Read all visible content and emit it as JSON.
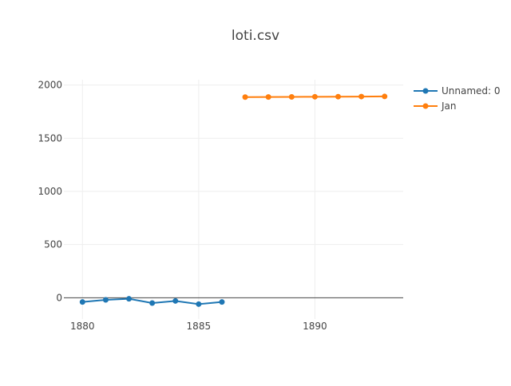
{
  "chart_data": {
    "type": "line",
    "title": "loti.csv",
    "xlabel": "",
    "ylabel": "",
    "xlim": [
      1879.2,
      1893.8
    ],
    "ylim": [
      -200,
      2050
    ],
    "x_ticks": [
      1880,
      1885,
      1890
    ],
    "y_ticks": [
      0,
      500,
      1000,
      1500,
      2000
    ],
    "grid": true,
    "legend_position": "top-right",
    "series": [
      {
        "name": "Unnamed: 0",
        "color": "#1f77b4",
        "x": [
          1880,
          1881,
          1882,
          1883,
          1884,
          1885,
          1886
        ],
        "y": [
          -40,
          -20,
          -10,
          -50,
          -30,
          -60,
          -40
        ]
      },
      {
        "name": "Jan",
        "color": "#ff7f0e",
        "x": [
          1887,
          1888,
          1889,
          1890,
          1891,
          1892,
          1893
        ],
        "y": [
          1887,
          1888,
          1889,
          1890,
          1891,
          1892,
          1893
        ]
      }
    ]
  }
}
